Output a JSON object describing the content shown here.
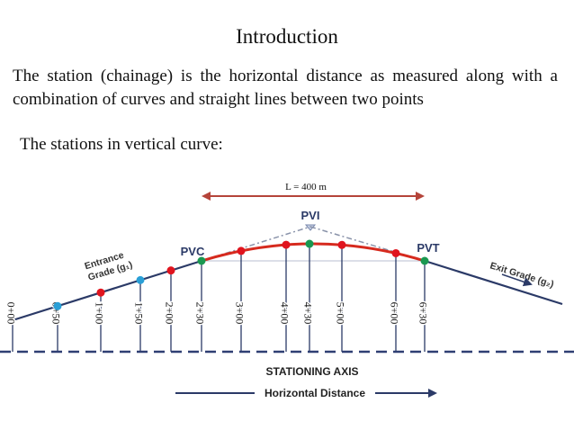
{
  "title": "Introduction",
  "paragraph": "The station (chainage) is the horizontal distance as measured along with a combination of curves and straight lines between two points",
  "subheading": "The stations in vertical curve:",
  "diagram": {
    "length_label": "L = 400 m",
    "pvi_label": "PVI",
    "pvc_label": "PVC",
    "pvt_label": "PVT",
    "entrance_grade": [
      "Entrance",
      "Grade (g₁)"
    ],
    "exit_grade": "Exit Grade (g₂)",
    "stationing_axis_label": "STATIONING  AXIS",
    "horizontal_distance_label": "Horizontal Distance",
    "stations": [
      "0+00",
      "0+50",
      "1+00",
      "1+50",
      "2+00",
      "2+30",
      "3+00",
      "4+00",
      "4+30",
      "5+00",
      "6+00",
      "6+30"
    ],
    "colors": {
      "curve": "#d62a1e",
      "tangent": "#2b3a67",
      "red_point": "#e0141e",
      "blue_point": "#2a9fd6",
      "green_point": "#1a9850",
      "axis": "#2f3f73",
      "arrow_top": "#b5443a"
    }
  }
}
